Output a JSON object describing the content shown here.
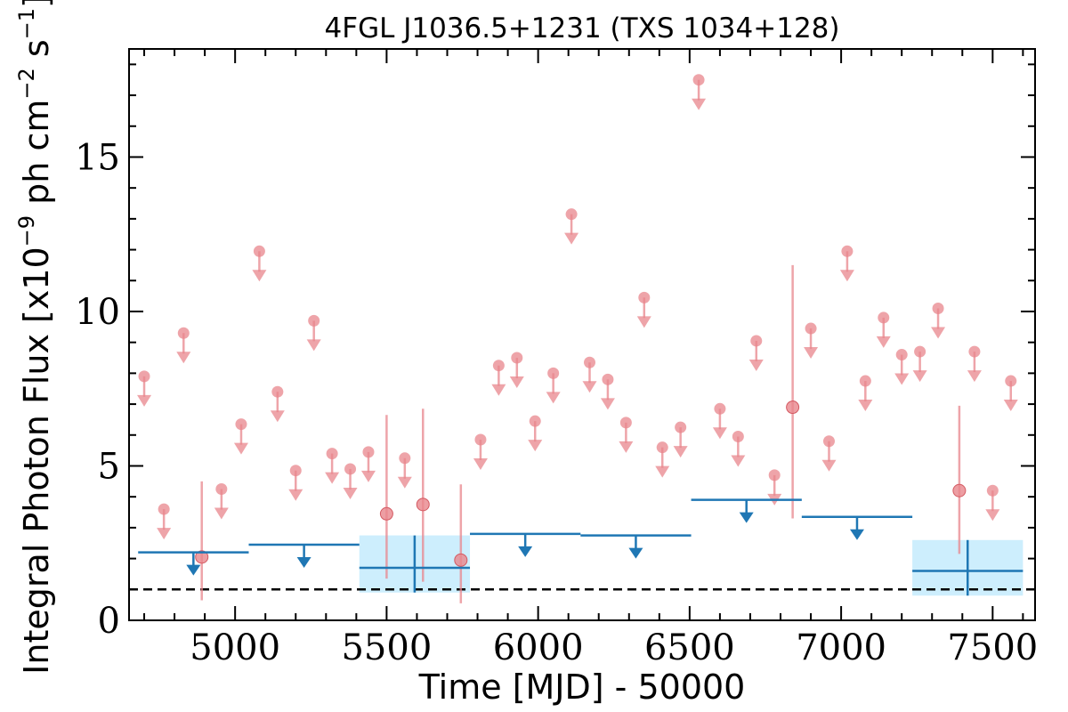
{
  "chart_data": {
    "type": "scatter",
    "title": "4FGL J1036.5+1231 (TXS 1034+128)",
    "xlabel": "Time [MJD] - 50000",
    "ylabel": "Integral Photon Flux [x10",
    "ylabel_exp": "−9",
    "ylabel_mid": " ph cm",
    "ylabel_exp2": "−2",
    "ylabel_mid2": " s",
    "ylabel_exp3": "−1",
    "ylabel_end": "]",
    "xlim": [
      4650,
      7640
    ],
    "ylim": [
      0,
      18.5
    ],
    "xticks": [
      5000,
      5500,
      6000,
      6500,
      7000,
      7500
    ],
    "yticks": [
      0,
      5,
      10,
      15
    ],
    "grid": false,
    "reference_line": 1.0,
    "series": [
      {
        "marker": "circle",
        "color": "#e8868c",
        "upper_limits": [
          {
            "x": 4700,
            "y": 7.9
          },
          {
            "x": 4765,
            "y": 3.6
          },
          {
            "x": 4830,
            "y": 9.3
          },
          {
            "x": 4955,
            "y": 4.25
          },
          {
            "x": 5020,
            "y": 6.35
          },
          {
            "x": 5080,
            "y": 11.95
          },
          {
            "x": 5140,
            "y": 7.4
          },
          {
            "x": 5200,
            "y": 4.85
          },
          {
            "x": 5260,
            "y": 9.7
          },
          {
            "x": 5320,
            "y": 5.4
          },
          {
            "x": 5380,
            "y": 4.9
          },
          {
            "x": 5440,
            "y": 5.45
          },
          {
            "x": 5560,
            "y": 5.25
          },
          {
            "x": 5810,
            "y": 5.85
          },
          {
            "x": 5870,
            "y": 8.25
          },
          {
            "x": 5930,
            "y": 8.5
          },
          {
            "x": 5990,
            "y": 6.45
          },
          {
            "x": 6050,
            "y": 8.0
          },
          {
            "x": 6110,
            "y": 13.15
          },
          {
            "x": 6170,
            "y": 8.35
          },
          {
            "x": 6230,
            "y": 7.8
          },
          {
            "x": 6290,
            "y": 6.4
          },
          {
            "x": 6350,
            "y": 10.45
          },
          {
            "x": 6410,
            "y": 5.6
          },
          {
            "x": 6470,
            "y": 6.25
          },
          {
            "x": 6530,
            "y": 17.5
          },
          {
            "x": 6600,
            "y": 6.85
          },
          {
            "x": 6660,
            "y": 5.95
          },
          {
            "x": 6720,
            "y": 9.05
          },
          {
            "x": 6780,
            "y": 4.7
          },
          {
            "x": 6900,
            "y": 9.45
          },
          {
            "x": 6960,
            "y": 5.8
          },
          {
            "x": 7020,
            "y": 11.95
          },
          {
            "x": 7080,
            "y": 7.75
          },
          {
            "x": 7140,
            "y": 9.8
          },
          {
            "x": 7200,
            "y": 8.6
          },
          {
            "x": 7260,
            "y": 8.7
          },
          {
            "x": 7320,
            "y": 10.1
          },
          {
            "x": 7440,
            "y": 8.7
          },
          {
            "x": 7500,
            "y": 4.2
          },
          {
            "x": 7560,
            "y": 7.75
          }
        ],
        "detections": [
          {
            "x": 4890,
            "y": 2.05,
            "ylo": 0.65,
            "yhi": 4.5
          },
          {
            "x": 5500,
            "y": 3.45,
            "ylo": 1.35,
            "yhi": 6.65
          },
          {
            "x": 5620,
            "y": 3.75,
            "ylo": 1.25,
            "yhi": 6.85
          },
          {
            "x": 5745,
            "y": 1.95,
            "ylo": 0.55,
            "yhi": 4.4
          },
          {
            "x": 6840,
            "y": 6.9,
            "ylo": 3.3,
            "yhi": 11.5
          },
          {
            "x": 7390,
            "y": 4.2,
            "ylo": 2.15,
            "yhi": 6.95
          }
        ]
      },
      {
        "marker": "step",
        "color": "#1f77b4",
        "band_color": "#cdeefd",
        "upper_limits": [
          {
            "x0": 4680,
            "x1": 5045,
            "y": 2.2
          },
          {
            "x0": 5045,
            "x1": 5410,
            "y": 2.45
          },
          {
            "x0": 5775,
            "x1": 6140,
            "y": 2.8
          },
          {
            "x0": 6140,
            "x1": 6505,
            "y": 2.75
          },
          {
            "x0": 6505,
            "x1": 6870,
            "y": 3.9
          },
          {
            "x0": 6870,
            "x1": 7235,
            "y": 3.35
          }
        ],
        "detections": [
          {
            "x0": 5410,
            "x1": 5775,
            "y": 1.7,
            "ylo": 0.9,
            "yhi": 2.75
          },
          {
            "x0": 7235,
            "x1": 7600,
            "y": 1.6,
            "ylo": 0.8,
            "yhi": 2.6
          }
        ]
      }
    ]
  }
}
